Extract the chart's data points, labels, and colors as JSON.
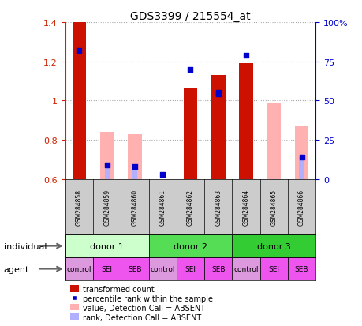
{
  "title": "GDS3399 / 215554_at",
  "samples": [
    "GSM284858",
    "GSM284859",
    "GSM284860",
    "GSM284861",
    "GSM284862",
    "GSM284863",
    "GSM284864",
    "GSM284865",
    "GSM284866"
  ],
  "red_bars": [
    1.4,
    null,
    null,
    null,
    1.06,
    1.13,
    1.19,
    null,
    null
  ],
  "pink_bars": [
    null,
    0.84,
    0.83,
    null,
    null,
    null,
    null,
    0.99,
    0.87
  ],
  "blue_pct": [
    82,
    9,
    8,
    3,
    70,
    54,
    79,
    null,
    14
  ],
  "blue_pct2": [
    null,
    null,
    null,
    null,
    null,
    55,
    null,
    null,
    null
  ],
  "lightblue_pct": [
    null,
    9,
    8,
    null,
    null,
    null,
    null,
    null,
    14
  ],
  "ylim_left": [
    0.6,
    1.4
  ],
  "ylim_right": [
    0,
    100
  ],
  "yticks_left": [
    0.6,
    0.8,
    1.0,
    1.2,
    1.4
  ],
  "ytick_labels_left": [
    "0.6",
    "0.8",
    "1",
    "1.2",
    "1.4"
  ],
  "yticks_right": [
    0,
    25,
    50,
    75,
    100
  ],
  "ytick_labels_right": [
    "0",
    "25",
    "50",
    "75",
    "100%"
  ],
  "donors": [
    {
      "label": "donor 1",
      "start": 0,
      "end": 3,
      "color": "#ccffcc"
    },
    {
      "label": "donor 2",
      "start": 3,
      "end": 6,
      "color": "#55dd55"
    },
    {
      "label": "donor 3",
      "start": 6,
      "end": 9,
      "color": "#33cc33"
    }
  ],
  "agents": [
    "control",
    "SEI",
    "SEB",
    "control",
    "SEI",
    "SEB",
    "control",
    "SEI",
    "SEB"
  ],
  "agent_colors": [
    "#dd99dd",
    "#ee55ee",
    "#ee55ee",
    "#dd99dd",
    "#ee55ee",
    "#ee55ee",
    "#dd99dd",
    "#ee55ee",
    "#ee55ee"
  ],
  "bar_color_red": "#cc1100",
  "bar_color_pink": "#ffb0b0",
  "bar_color_lightblue": "#b0b0ff",
  "square_color_blue": "#0000cc",
  "bg_color": "#ffffff",
  "sample_bg_color": "#cccccc",
  "left_axis_color": "#cc2200",
  "right_axis_color": "#0000cc",
  "legend_items": [
    {
      "type": "patch",
      "color": "#cc1100",
      "label": "transformed count"
    },
    {
      "type": "square",
      "color": "#0000cc",
      "label": "percentile rank within the sample"
    },
    {
      "type": "patch",
      "color": "#ffb0b0",
      "label": "value, Detection Call = ABSENT"
    },
    {
      "type": "patch",
      "color": "#b0b0ff",
      "label": "rank, Detection Call = ABSENT"
    }
  ]
}
